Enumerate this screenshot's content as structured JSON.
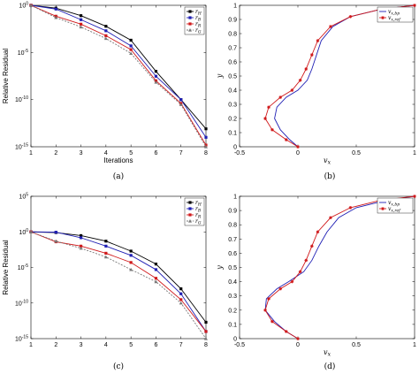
{
  "captions": [
    "(a)",
    "(b)",
    "(c)",
    "(d)"
  ],
  "chart_data": [
    {
      "type": "line",
      "caption": "(a)",
      "xlabel": "Iterations",
      "ylabel": "Relative Residual",
      "ylog": true,
      "xlim": [
        1,
        8
      ],
      "ylim": [
        1e-15,
        1
      ],
      "xticks": [
        "1",
        "2",
        "3",
        "4",
        "5",
        "6",
        "7",
        "8"
      ],
      "yticks": [
        {
          "exp": "0"
        },
        {
          "exp": "-5"
        },
        {
          "exp": "-10"
        },
        {
          "exp": "-15"
        }
      ],
      "x": [
        1,
        2,
        3,
        4,
        5,
        6,
        7,
        8
      ],
      "legend": "top-right",
      "series": [
        {
          "name": "r_H",
          "color": "#000000",
          "marker": "square",
          "dash": "",
          "values": [
            1,
            0.5,
            0.08,
            0.006,
            0.0002,
            1e-07,
            1e-10,
            8e-14
          ]
        },
        {
          "name": "r_B",
          "color": "#1f1fb4",
          "marker": "square",
          "dash": "",
          "values": [
            1,
            0.4,
            0.03,
            0.002,
            5e-05,
            3e-08,
            1e-10,
            1e-14
          ]
        },
        {
          "name": "r_R",
          "color": "#d0191b",
          "marker": "square",
          "dash": "",
          "values": [
            1,
            0.07,
            0.01,
            0.0006,
            2e-05,
            1e-08,
            4e-11,
            1.5e-15
          ]
        },
        {
          "name": "r_G",
          "color": "#777777",
          "marker": "triangle",
          "dash": "2,1.5",
          "values": [
            1,
            0.05,
            0.005,
            0.0003,
            8e-06,
            7e-09,
            3e-11,
            1e-15
          ]
        }
      ]
    },
    {
      "type": "line",
      "caption": "(b)",
      "xlabel": "v_x",
      "ylabel": "y",
      "xlim": [
        -0.5,
        1
      ],
      "ylim": [
        0,
        1
      ],
      "xticks": [
        "-0.5",
        "0",
        "0.5",
        "1"
      ],
      "yticks": [
        "0",
        "0.1",
        "0.2",
        "0.3",
        "0.4",
        "0.5",
        "0.6",
        "0.7",
        "0.8",
        "0.9",
        "1"
      ],
      "legend": "top-right",
      "series": [
        {
          "name": "v_x,bp",
          "color": "#1f1fb4",
          "marker": "none",
          "x": [
            0,
            -0.07,
            -0.15,
            -0.2,
            -0.18,
            -0.1,
            0,
            0.08,
            0.12,
            0.16,
            0.2,
            0.3,
            0.45,
            0.7,
            1
          ],
          "y": [
            0,
            0.05,
            0.12,
            0.2,
            0.28,
            0.35,
            0.4,
            0.47,
            0.55,
            0.65,
            0.75,
            0.85,
            0.92,
            0.97,
            1
          ]
        },
        {
          "name": "v_x,ref",
          "color": "#d0191b",
          "marker": "star",
          "x": [
            0,
            -0.1,
            -0.22,
            -0.28,
            -0.25,
            -0.15,
            -0.05,
            0.02,
            0.07,
            0.12,
            0.17,
            0.28,
            0.45,
            0.7,
            1
          ],
          "y": [
            0,
            0.05,
            0.12,
            0.2,
            0.28,
            0.35,
            0.4,
            0.47,
            0.55,
            0.65,
            0.75,
            0.85,
            0.92,
            0.97,
            1
          ]
        }
      ]
    },
    {
      "type": "line",
      "caption": "(c)",
      "xlabel": "",
      "ylabel": "Relative Residual",
      "ylog": true,
      "xlim": [
        1,
        8
      ],
      "ylim": [
        1e-15,
        100000
      ],
      "xticks": [
        "1",
        "2",
        "3",
        "4",
        "5",
        "6",
        "7",
        "8"
      ],
      "yticks": [
        {
          "exp": "5"
        },
        {
          "exp": "0"
        },
        {
          "exp": "-5"
        },
        {
          "exp": "-10"
        },
        {
          "exp": "-15"
        }
      ],
      "x": [
        1,
        2,
        3,
        4,
        5,
        6,
        7,
        8
      ],
      "legend": "top-right",
      "series": [
        {
          "name": "r_H",
          "color": "#000000",
          "marker": "square",
          "dash": "",
          "values": [
            1,
            0.8,
            0.3,
            0.05,
            0.002,
            3e-05,
            1e-08,
            2e-13
          ]
        },
        {
          "name": "r_B",
          "color": "#1f1fb4",
          "marker": "square",
          "dash": "",
          "values": [
            1,
            0.9,
            0.15,
            0.01,
            0.0005,
            5e-06,
            2e-09,
            1e-14
          ]
        },
        {
          "name": "r_R",
          "color": "#d0191b",
          "marker": "square",
          "dash": "",
          "values": [
            1,
            0.04,
            0.01,
            0.001,
            5e-05,
            3e-07,
            3e-10,
            1e-14
          ]
        },
        {
          "name": "r_G",
          "color": "#777777",
          "marker": "triangle",
          "dash": "2,1.5",
          "values": [
            1,
            0.05,
            0.005,
            0.0003,
            5e-06,
            1e-07,
            1e-10,
            1e-15
          ]
        }
      ]
    },
    {
      "type": "line",
      "caption": "(d)",
      "xlabel": "v_x",
      "ylabel": "y",
      "xlim": [
        -0.5,
        1
      ],
      "ylim": [
        0,
        1
      ],
      "xticks": [
        "-0.5",
        "0",
        "0.5",
        "1"
      ],
      "yticks": [
        "0",
        "0.1",
        "0.2",
        "0.3",
        "0.4",
        "0.5",
        "0.6",
        "0.7",
        "0.8",
        "0.9",
        "1"
      ],
      "legend": "top-right",
      "series": [
        {
          "name": "v_x,bp",
          "color": "#1f1fb4",
          "marker": "none",
          "x": [
            0,
            -0.1,
            -0.2,
            -0.28,
            -0.27,
            -0.18,
            -0.08,
            0.05,
            0.12,
            0.18,
            0.25,
            0.35,
            0.5,
            0.75,
            1
          ],
          "y": [
            0,
            0.05,
            0.12,
            0.2,
            0.28,
            0.35,
            0.4,
            0.47,
            0.55,
            0.65,
            0.75,
            0.85,
            0.92,
            0.97,
            1
          ]
        },
        {
          "name": "v_x,ref",
          "color": "#d0191b",
          "marker": "star",
          "x": [
            0,
            -0.1,
            -0.22,
            -0.28,
            -0.25,
            -0.15,
            -0.05,
            0.02,
            0.07,
            0.12,
            0.17,
            0.28,
            0.45,
            0.7,
            1
          ],
          "y": [
            0,
            0.05,
            0.12,
            0.2,
            0.28,
            0.35,
            0.4,
            0.47,
            0.55,
            0.65,
            0.75,
            0.85,
            0.92,
            0.97,
            1
          ]
        }
      ]
    }
  ]
}
